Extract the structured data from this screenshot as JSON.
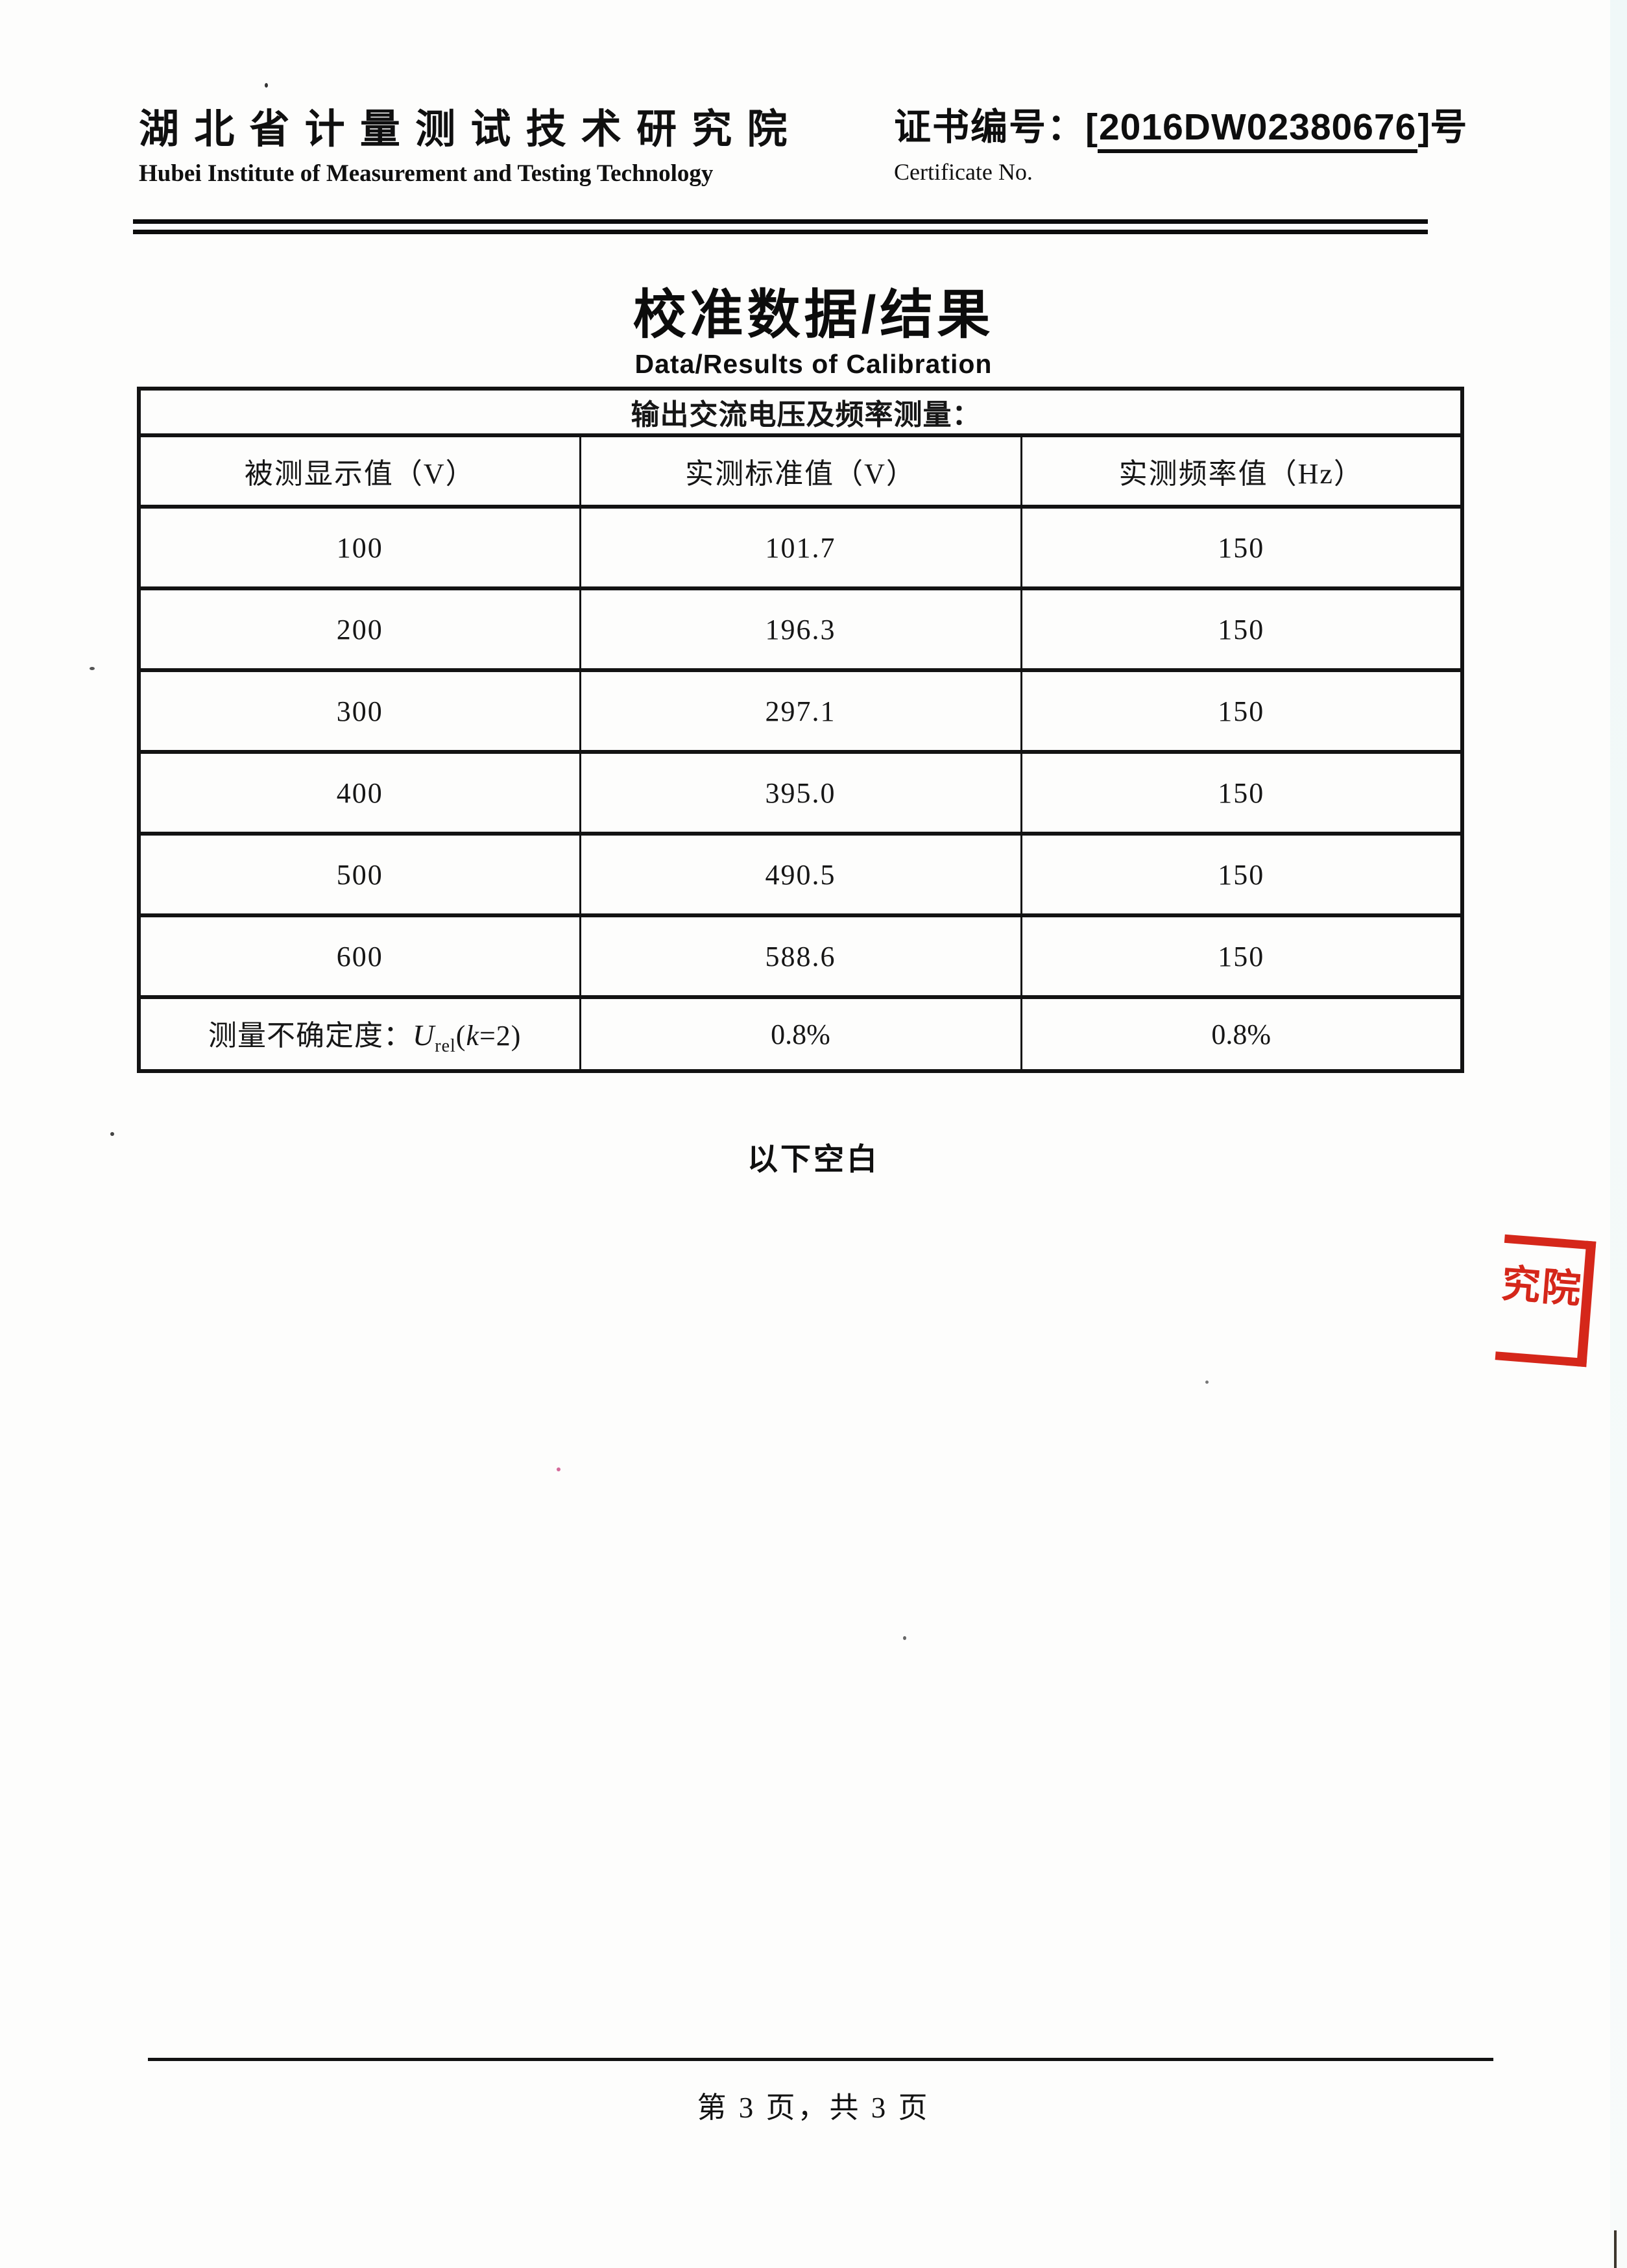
{
  "header": {
    "org_name_cn": "湖 北 省 计 量 测 试 技 术 研 究 院",
    "org_name_en": "Hubei Institute of Measurement and Testing Technology",
    "cert_label_cn": "证书编号：",
    "cert_bracket_open": "[",
    "cert_number": "2016DW02380676",
    "cert_bracket_close": "]",
    "cert_suffix": "号",
    "cert_label_en": "Certificate No."
  },
  "title": {
    "cn": "校准数据/结果",
    "en": "Data/Results of Calibration"
  },
  "table": {
    "section_header": "输出交流电压及频率测量：",
    "columns": [
      "被测显示值（V）",
      "实测标准值（V）",
      "实测频率值（Hz）"
    ],
    "rows": [
      [
        "100",
        "101.7",
        "150"
      ],
      [
        "200",
        "196.3",
        "150"
      ],
      [
        "300",
        "297.1",
        "150"
      ],
      [
        "400",
        "395.0",
        "150"
      ],
      [
        "500",
        "490.5",
        "150"
      ],
      [
        "600",
        "588.6",
        "150"
      ]
    ],
    "uncertainty": {
      "label_prefix": "测量不确定度：",
      "u_symbol": "U",
      "u_subscript": "rel",
      "k_open": "(",
      "k_symbol": "k",
      "k_rest": "=2)",
      "values": [
        "0.8%",
        "0.8%"
      ]
    }
  },
  "below_blank": "以下空白",
  "stamp": {
    "text": "究院",
    "color": "#d5271a"
  },
  "footer": {
    "page_text": "第 3 页，共 3 页"
  }
}
